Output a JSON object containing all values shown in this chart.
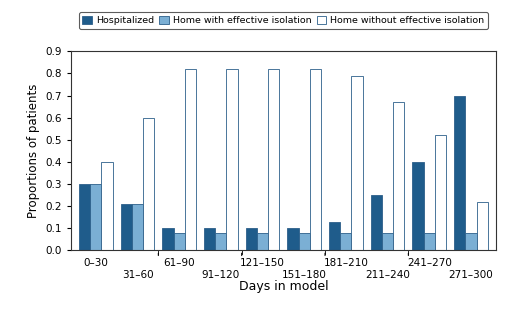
{
  "categories": [
    "0–30",
    "31–60",
    "61–90",
    "91–120",
    "121–150",
    "151–180",
    "181–210",
    "211–240",
    "241–270",
    "271–300"
  ],
  "hospitalized": [
    0.3,
    0.21,
    0.1,
    0.1,
    0.1,
    0.1,
    0.13,
    0.25,
    0.4,
    0.7
  ],
  "home_effective": [
    0.3,
    0.21,
    0.08,
    0.08,
    0.08,
    0.08,
    0.08,
    0.08,
    0.08,
    0.08
  ],
  "home_no_effective": [
    0.4,
    0.6,
    0.82,
    0.82,
    0.82,
    0.82,
    0.79,
    0.67,
    0.52,
    0.22
  ],
  "color_hospitalized": "#1f5c8b",
  "color_home_effective": "#7bafd4",
  "color_home_no_effective": "#ffffff",
  "xlabel": "Days in model",
  "ylabel": "Proportions of patients",
  "ylim": [
    0,
    0.9
  ],
  "yticks": [
    0,
    0.1,
    0.2,
    0.3,
    0.4,
    0.5,
    0.6,
    0.7,
    0.8,
    0.9
  ],
  "legend_labels": [
    "Hospitalized",
    "Home with effective isolation",
    "Home without effective isolation"
  ],
  "bar_width": 0.27,
  "edge_color": "#2c5f8a",
  "background_color": "#ffffff",
  "plot_bg_color": "#ffffff"
}
